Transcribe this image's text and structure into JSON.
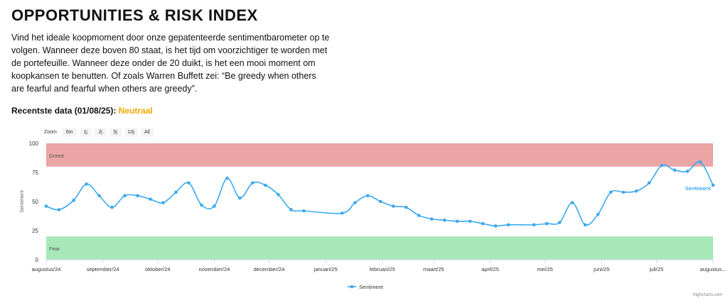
{
  "title": "OPPORTUNITIES & RISK INDEX",
  "intro": "Vind het ideale koopmoment door onze gepatenteerde sentimentbarometer op te volgen. Wanneer deze boven 80 staat, is het tijd om voorzichtiger te worden met de portefeuille. Wanneer deze onder de 20 duikt, is het een mooi moment om koopkansen te benutten. Of zoals Warren Buffett zei: “Be greedy when others are fearful and fearful when others are greedy”.",
  "recent": {
    "label": "Recentste data (01/08/25):",
    "status": "Neutraal"
  },
  "zoom": {
    "label": "Zoom",
    "buttons": [
      "6m",
      "1j",
      "2j",
      "5j",
      "10j",
      "All"
    ]
  },
  "credits": "Highcharts.com",
  "colors": {
    "line": "#3aa9f0",
    "greed": "#eca5a5",
    "fear": "#a7e8b8",
    "status": "#f0a800"
  },
  "chart_data": {
    "type": "line",
    "ylabel": "Sentiment",
    "ylim": [
      0,
      100
    ],
    "yticks": [
      0,
      25,
      50,
      75,
      100
    ],
    "xlabels": [
      "augustus/24",
      "september/24",
      "oktober/24",
      "november/24",
      "december/24",
      "januari/25",
      "februari/25",
      "maart/25",
      "april/25",
      "mei/25",
      "juni/25",
      "juli/25",
      "augustus..."
    ],
    "xrange": [
      "2024-08-01",
      "2025-08-01"
    ],
    "bands": [
      {
        "name": "Greed",
        "from": 80,
        "to": 100
      },
      {
        "name": "Fear",
        "from": 0,
        "to": 20
      }
    ],
    "series": [
      {
        "name": "Sentiment",
        "points": [
          [
            "2024-08-01",
            46
          ],
          [
            "2024-08-08",
            43
          ],
          [
            "2024-08-16",
            51
          ],
          [
            "2024-08-23",
            65
          ],
          [
            "2024-08-30",
            55
          ],
          [
            "2024-09-06",
            45
          ],
          [
            "2024-09-13",
            55
          ],
          [
            "2024-09-20",
            55
          ],
          [
            "2024-09-27",
            52
          ],
          [
            "2024-10-04",
            49
          ],
          [
            "2024-10-11",
            58
          ],
          [
            "2024-10-18",
            66
          ],
          [
            "2024-10-25",
            47
          ],
          [
            "2024-11-01",
            46
          ],
          [
            "2024-11-08",
            70
          ],
          [
            "2024-11-15",
            53
          ],
          [
            "2024-11-22",
            66
          ],
          [
            "2024-11-29",
            64
          ],
          [
            "2024-12-06",
            56
          ],
          [
            "2024-12-13",
            43
          ],
          [
            "2024-12-20",
            42
          ],
          [
            "2025-01-10",
            40
          ],
          [
            "2025-01-17",
            49
          ],
          [
            "2025-01-24",
            55
          ],
          [
            "2025-01-31",
            50
          ],
          [
            "2025-02-07",
            46
          ],
          [
            "2025-02-14",
            45
          ],
          [
            "2025-02-21",
            38
          ],
          [
            "2025-02-28",
            35
          ],
          [
            "2025-03-07",
            34
          ],
          [
            "2025-03-14",
            33
          ],
          [
            "2025-03-21",
            33
          ],
          [
            "2025-03-28",
            31
          ],
          [
            "2025-04-04",
            29
          ],
          [
            "2025-04-11",
            30
          ],
          [
            "2025-04-25",
            30
          ],
          [
            "2025-05-02",
            31
          ],
          [
            "2025-05-09",
            32
          ],
          [
            "2025-05-16",
            49
          ],
          [
            "2025-05-23",
            30
          ],
          [
            "2025-05-30",
            39
          ],
          [
            "2025-06-06",
            58
          ],
          [
            "2025-06-13",
            58
          ],
          [
            "2025-06-20",
            59
          ],
          [
            "2025-06-27",
            66
          ],
          [
            "2025-07-04",
            81
          ],
          [
            "2025-07-11",
            77
          ],
          [
            "2025-07-18",
            76
          ],
          [
            "2025-07-25",
            84
          ],
          [
            "2025-08-01",
            64
          ]
        ]
      }
    ],
    "legend": "bottom-center",
    "grid": false
  }
}
